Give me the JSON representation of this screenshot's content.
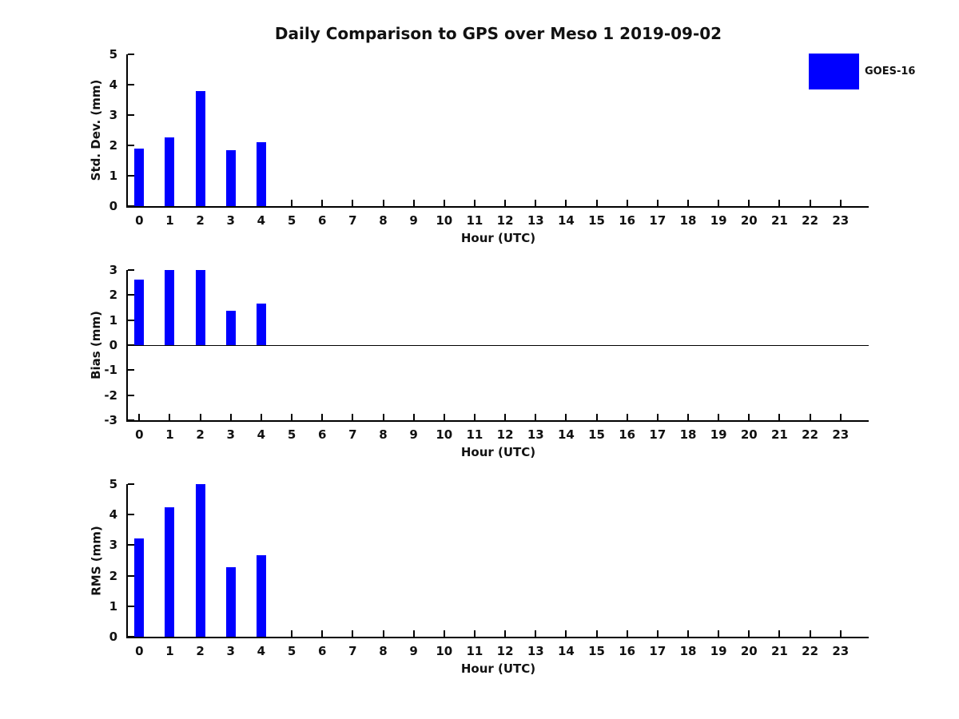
{
  "title": "Daily Comparison to GPS over Meso 1 2019-09-02",
  "legend": {
    "label": "GOES-16",
    "swatch_color": "#0000FF",
    "position": "top-right"
  },
  "colors": {
    "bar": "#0000FF",
    "axis": "#000000",
    "text": "#111111",
    "background": "#ffffff"
  },
  "chart_data": [
    {
      "type": "bar",
      "series_name": "GOES-16",
      "ylabel": "Std. Dev. (mm)",
      "xlabel": "Hour (UTC)",
      "categories": [
        0,
        1,
        2,
        3,
        4,
        5,
        6,
        7,
        8,
        9,
        10,
        11,
        12,
        13,
        14,
        15,
        16,
        17,
        18,
        19,
        20,
        21,
        22,
        23
      ],
      "values": [
        1.9,
        2.26,
        3.78,
        1.84,
        2.1,
        null,
        null,
        null,
        null,
        null,
        null,
        null,
        null,
        null,
        null,
        null,
        null,
        null,
        null,
        null,
        null,
        null,
        null,
        null
      ],
      "ylim": [
        0,
        5
      ],
      "yticks": [
        0,
        1,
        2,
        3,
        4,
        5
      ],
      "grid": false,
      "zero_line": false
    },
    {
      "type": "bar",
      "series_name": "GOES-16",
      "ylabel": "Bias (mm)",
      "xlabel": "Hour (UTC)",
      "categories": [
        0,
        1,
        2,
        3,
        4,
        5,
        6,
        7,
        8,
        9,
        10,
        11,
        12,
        13,
        14,
        15,
        16,
        17,
        18,
        19,
        20,
        21,
        22,
        23
      ],
      "values": [
        2.63,
        3.0,
        3.0,
        1.38,
        1.66,
        null,
        null,
        null,
        null,
        null,
        null,
        null,
        null,
        null,
        null,
        null,
        null,
        null,
        null,
        null,
        null,
        null,
        null,
        null
      ],
      "ylim": [
        -3,
        3
      ],
      "yticks": [
        -3,
        -2,
        -1,
        0,
        1,
        2,
        3
      ],
      "grid": false,
      "zero_line": true
    },
    {
      "type": "bar",
      "series_name": "GOES-16",
      "ylabel": "RMS (mm)",
      "xlabel": "Hour (UTC)",
      "categories": [
        0,
        1,
        2,
        3,
        4,
        5,
        6,
        7,
        8,
        9,
        10,
        11,
        12,
        13,
        14,
        15,
        16,
        17,
        18,
        19,
        20,
        21,
        22,
        23
      ],
      "values": [
        3.21,
        4.25,
        5.0,
        2.29,
        2.67,
        null,
        null,
        null,
        null,
        null,
        null,
        null,
        null,
        null,
        null,
        null,
        null,
        null,
        null,
        null,
        null,
        null,
        null,
        null
      ],
      "ylim": [
        0,
        5
      ],
      "yticks": [
        0,
        1,
        2,
        3,
        4,
        5
      ],
      "grid": false,
      "zero_line": false
    }
  ]
}
